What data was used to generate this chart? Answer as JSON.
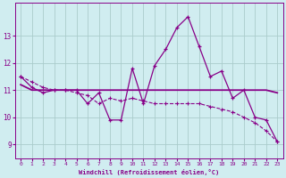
{
  "xlabel": "Windchill (Refroidissement éolien,°C)",
  "background_color": "#d0edf0",
  "grid_color": "#aacccc",
  "line_color": "#880088",
  "xlim": [
    -0.5,
    23.5
  ],
  "ylim": [
    8.5,
    14.2
  ],
  "yticks": [
    9,
    10,
    11,
    12,
    13
  ],
  "xticks": [
    0,
    1,
    2,
    3,
    4,
    5,
    6,
    7,
    8,
    9,
    10,
    11,
    12,
    13,
    14,
    15,
    16,
    17,
    18,
    19,
    20,
    21,
    22,
    23
  ],
  "series1_x": [
    0,
    1,
    2,
    3,
    4,
    5,
    6,
    7,
    8,
    9,
    10,
    11,
    12,
    13,
    14,
    15,
    16,
    17,
    18,
    19,
    20,
    21,
    22,
    23
  ],
  "series1_y": [
    11.5,
    11.1,
    10.9,
    11.0,
    11.0,
    11.0,
    10.5,
    10.9,
    9.9,
    9.9,
    11.8,
    10.5,
    11.9,
    12.5,
    13.3,
    13.7,
    12.6,
    11.5,
    11.7,
    10.7,
    11.0,
    10.0,
    9.9,
    9.1
  ],
  "series2_x": [
    0,
    1,
    2,
    3,
    4,
    5,
    6,
    7,
    8,
    9,
    10,
    11,
    12,
    13,
    14,
    15,
    16,
    17,
    18,
    19,
    20,
    21,
    22,
    23
  ],
  "series2_y": [
    11.2,
    11.0,
    11.0,
    11.0,
    11.0,
    11.0,
    11.0,
    11.0,
    11.0,
    11.0,
    11.0,
    11.0,
    11.0,
    11.0,
    11.0,
    11.0,
    11.0,
    11.0,
    11.0,
    11.0,
    11.0,
    11.0,
    11.0,
    10.9
  ],
  "series3_x": [
    0,
    1,
    2,
    3,
    4,
    5,
    6,
    7,
    8,
    9,
    10,
    11,
    12,
    13,
    14,
    15,
    16,
    17,
    18,
    19,
    20,
    21,
    22,
    23
  ],
  "series3_y": [
    11.5,
    11.3,
    11.1,
    11.0,
    11.0,
    10.9,
    10.8,
    10.5,
    10.7,
    10.6,
    10.7,
    10.6,
    10.5,
    10.5,
    10.5,
    10.5,
    10.5,
    10.4,
    10.3,
    10.2,
    10.0,
    9.8,
    9.5,
    9.1
  ]
}
